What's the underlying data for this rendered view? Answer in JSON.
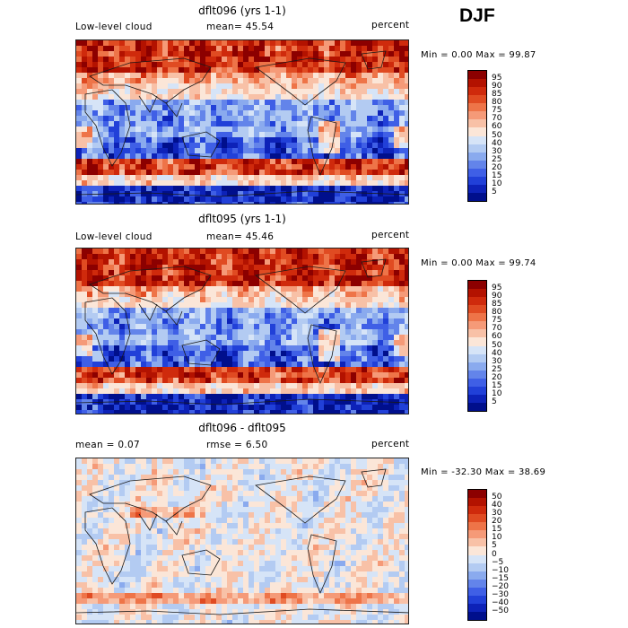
{
  "season": "DJF",
  "panels": [
    {
      "title": "dflt096 (yrs 1-1)",
      "left_label": "Low-level cloud",
      "center_label": "mean=  45.54",
      "right_label": "percent",
      "minmax": "Min =   0.00 Max =  99.87",
      "levels": [
        "95",
        "90",
        "85",
        "80",
        "75",
        "70",
        "60",
        "50",
        "40",
        "30",
        "25",
        "20",
        "15",
        "10",
        "5"
      ],
      "colors": [
        "#8c0000",
        "#b31200",
        "#cf2a0c",
        "#e04b22",
        "#ee7448",
        "#f59a78",
        "#f8c1a7",
        "#fbe6d8",
        "#d6e4f7",
        "#b3cbf2",
        "#8aaaee",
        "#6384ea",
        "#3f5fe6",
        "#2140d8",
        "#0d22b8",
        "#000f8c"
      ]
    },
    {
      "title": "dflt095 (yrs 1-1)",
      "left_label": "Low-level cloud",
      "center_label": "mean=  45.46",
      "right_label": "percent",
      "minmax": "Min =   0.00 Max =  99.74",
      "levels": [
        "95",
        "90",
        "85",
        "80",
        "75",
        "70",
        "60",
        "50",
        "40",
        "30",
        "25",
        "20",
        "15",
        "10",
        "5"
      ],
      "colors": [
        "#8c0000",
        "#b31200",
        "#cf2a0c",
        "#e04b22",
        "#ee7448",
        "#f59a78",
        "#f8c1a7",
        "#fbe6d8",
        "#d6e4f7",
        "#b3cbf2",
        "#8aaaee",
        "#6384ea",
        "#3f5fe6",
        "#2140d8",
        "#0d22b8",
        "#000f8c"
      ]
    },
    {
      "title": "dflt096 - dflt095",
      "left_label": "mean =   0.07",
      "center_label": "rmse =   6.50",
      "right_label": "percent",
      "minmax": "Min = -32.30 Max =  38.69",
      "levels": [
        "50",
        "40",
        "30",
        "20",
        "15",
        "10",
        "5",
        "0",
        "−5",
        "−10",
        "−15",
        "−20",
        "−30",
        "−40",
        "−50"
      ],
      "colors": [
        "#8c0000",
        "#b31200",
        "#cf2a0c",
        "#e04b22",
        "#ee7448",
        "#f59a78",
        "#f8c1a7",
        "#fbe6d8",
        "#d6e4f7",
        "#b3cbf2",
        "#8aaaee",
        "#6384ea",
        "#3f5fe6",
        "#2140d8",
        "#0d22b8",
        "#000f8c"
      ]
    }
  ]
}
